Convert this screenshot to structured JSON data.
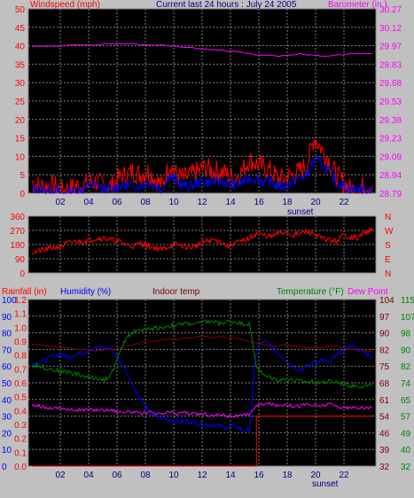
{
  "colors": {
    "background": "#c0c0c0",
    "plot_bg": "#000000",
    "grid": "#808080",
    "wind": "#ff0000",
    "wind_avg": "#0000ff",
    "barometer": "#ff00ff",
    "direction": "#ff0000",
    "rain": "#ff0000",
    "humidity": "#0000ff",
    "indoor": "#800000",
    "temperature": "#008000",
    "dewpoint": "#ff00ff",
    "title": "#000080"
  },
  "chart_data": [
    {
      "id": "wind",
      "type": "line",
      "title": "Current last 24 hours : July 24 2005",
      "ylabel": "Windspeed (mph)",
      "y2label": "Barometer (in.)",
      "ylim": [
        0,
        50
      ],
      "y2lim": [
        28.79,
        30.27
      ],
      "yticks": [
        "0",
        "5",
        "10",
        "15",
        "20",
        "25",
        "30",
        "35",
        "40",
        "45",
        "50"
      ],
      "y2ticks": [
        "28.79",
        "28.94",
        "29.09",
        "29.23",
        "29.38",
        "29.53",
        "29.68",
        "29.83",
        "29.97",
        "30.12",
        "30.27"
      ],
      "x_tick_labels": [
        "02",
        "04",
        "06",
        "08",
        "10",
        "12",
        "14",
        "16",
        "18",
        "20",
        "22"
      ],
      "annotation": "sunset",
      "series": [
        {
          "name": "Windspeed (mph)",
          "kind": "gust",
          "hourly_values": [
            3,
            2,
            2,
            2,
            1,
            1,
            2,
            2,
            3,
            3,
            2,
            2,
            4,
            5,
            6,
            5,
            6,
            4,
            2,
            8,
            5,
            4,
            5,
            6,
            7,
            6,
            6,
            5,
            4,
            6,
            9,
            8,
            7,
            6,
            4,
            4,
            5,
            6,
            8,
            15,
            12,
            9,
            5,
            3,
            1,
            1,
            2,
            2
          ]
        },
        {
          "name": "wind-average",
          "kind": "average",
          "hourly_values": [
            1,
            1,
            1,
            1,
            0,
            0,
            1,
            1,
            2,
            2,
            1,
            1,
            2,
            2,
            2,
            2,
            3,
            2,
            1,
            5,
            3,
            2,
            2,
            3,
            3,
            3,
            3,
            3,
            2,
            3,
            4,
            4,
            3,
            3,
            2,
            2,
            3,
            4,
            5,
            9,
            8,
            6,
            3,
            2,
            1,
            1,
            1,
            1
          ]
        },
        {
          "name": "Barometer (in.)",
          "kind": "barometer",
          "hourly_values": [
            29.97,
            29.97,
            29.97,
            29.97,
            29.97,
            29.98,
            29.98,
            29.98,
            29.98,
            29.98,
            29.99,
            29.99,
            29.99,
            29.99,
            29.99,
            29.98,
            29.98,
            29.98,
            29.98,
            29.97,
            29.97,
            29.96,
            29.96,
            29.95,
            29.95,
            29.94,
            29.94,
            29.93,
            29.93,
            29.92,
            29.91,
            29.9,
            29.9,
            29.9,
            29.89,
            29.9,
            29.9,
            29.91,
            29.9,
            29.9,
            29.89,
            29.89,
            29.9,
            29.9,
            29.91,
            29.91,
            29.91,
            29.91
          ]
        }
      ]
    },
    {
      "id": "direction",
      "type": "line",
      "ylim": [
        0,
        360
      ],
      "yticks": [
        "0",
        "90",
        "180",
        "270",
        "360"
      ],
      "y2ticks": [
        "N",
        "E",
        "S",
        "W",
        "N"
      ],
      "series": [
        {
          "name": "wind-direction",
          "hourly_values": [
            130,
            140,
            150,
            160,
            170,
            190,
            200,
            200,
            210,
            220,
            220,
            210,
            200,
            180,
            170,
            190,
            170,
            160,
            150,
            170,
            180,
            170,
            160,
            180,
            200,
            210,
            200,
            170,
            190,
            200,
            220,
            250,
            240,
            230,
            250,
            260,
            240,
            250,
            260,
            250,
            220,
            210,
            200,
            240,
            230,
            220,
            260,
            270
          ]
        }
      ]
    },
    {
      "id": "temp",
      "type": "line",
      "title_left": "Rainfall (in)",
      "title_humidity": "Humidity (%)",
      "title_indoor": "Indoor temp",
      "title_temp": "Temperature (°F)",
      "title_dew": "Dew Point",
      "rain_ticks": [
        "0.0",
        "0.1",
        "0.2",
        "0.3",
        "0.4",
        "0.5",
        "0.6",
        "0.7",
        "0.8",
        "0.9",
        "1.0",
        "1.1",
        "1.2"
      ],
      "humidity_ticks": [
        "0",
        "10",
        "20",
        "30",
        "40",
        "50",
        "60",
        "70",
        "80",
        "90",
        "100"
      ],
      "temp_ticks_left": [
        "32",
        "40",
        "49",
        "57",
        "65",
        "74",
        "82",
        "90",
        "98",
        "107",
        "115"
      ],
      "temp_ticks_right": [
        "32",
        "39",
        "46",
        "54",
        "61",
        "68",
        "75",
        "82",
        "90",
        "97",
        "104"
      ],
      "x_tick_labels": [
        "02",
        "04",
        "06",
        "08",
        "10",
        "12",
        "14",
        "16",
        "18",
        "20",
        "22"
      ],
      "annotation": "sunset",
      "series": [
        {
          "name": "Rainfall (in)",
          "ylim": [
            0,
            1.2
          ],
          "hourly_values": [
            0,
            0,
            0,
            0,
            0,
            0,
            0,
            0,
            0,
            0,
            0,
            0,
            0,
            0,
            0,
            0,
            0,
            0,
            0,
            0,
            0,
            0,
            0,
            0,
            0,
            0,
            0,
            0,
            0,
            0,
            0,
            0.36,
            0.36,
            0.36,
            0.36,
            0.36,
            0.36,
            0.36,
            0.36,
            0.36,
            0.36,
            0.36,
            0.36,
            0.36,
            0.36,
            0.36,
            0.36,
            0.36
          ]
        },
        {
          "name": "Humidity (%)",
          "ylim": [
            0,
            100
          ],
          "hourly_values": [
            61,
            62,
            64,
            66,
            67,
            66,
            67,
            68,
            70,
            71,
            71,
            70,
            64,
            57,
            48,
            40,
            33,
            30,
            29,
            28,
            27,
            27,
            27,
            25,
            25,
            25,
            24,
            23,
            24,
            22,
            21,
            70,
            75,
            72,
            68,
            64,
            60,
            58,
            60,
            62,
            64,
            62,
            66,
            70,
            72,
            70,
            68,
            66
          ]
        },
        {
          "name": "Indoor temp",
          "ylim": [
            0,
            100
          ],
          "hourly_values": [
            73,
            73,
            72,
            72,
            71,
            71,
            70,
            70,
            70,
            69,
            70,
            70,
            71,
            72,
            73,
            74,
            75,
            75,
            76,
            76,
            76,
            77,
            77,
            78,
            78,
            77,
            78,
            77,
            77,
            76,
            75,
            74,
            73,
            72,
            72,
            73,
            72,
            72,
            71,
            71,
            71,
            72,
            72,
            71,
            70,
            70,
            69,
            69
          ]
        },
        {
          "name": "Temperature (°F)",
          "ylim": [
            32,
            115
          ],
          "hourly_values": [
            82,
            82,
            81,
            80,
            79,
            79,
            78,
            77,
            76,
            76,
            75,
            78,
            87,
            96,
            99,
            100,
            100,
            101,
            101,
            102,
            102,
            103,
            103,
            103,
            104,
            104,
            103,
            104,
            104,
            103,
            103,
            82,
            77,
            76,
            75,
            75,
            75,
            74,
            74,
            74,
            74,
            74,
            74,
            73,
            72,
            72,
            72,
            72
          ]
        },
        {
          "name": "Dew Point",
          "ylim": [
            32,
            115
          ],
          "hourly_values": [
            62,
            62,
            61,
            61,
            61,
            60,
            60,
            60,
            60,
            60,
            60,
            60,
            59,
            59,
            59,
            58,
            59,
            58,
            58,
            59,
            58,
            59,
            58,
            58,
            58,
            57,
            58,
            57,
            57,
            57,
            58,
            62,
            63,
            63,
            62,
            63,
            62,
            62,
            63,
            62,
            62,
            63,
            62,
            61,
            61,
            61,
            61,
            61
          ]
        }
      ]
    }
  ]
}
